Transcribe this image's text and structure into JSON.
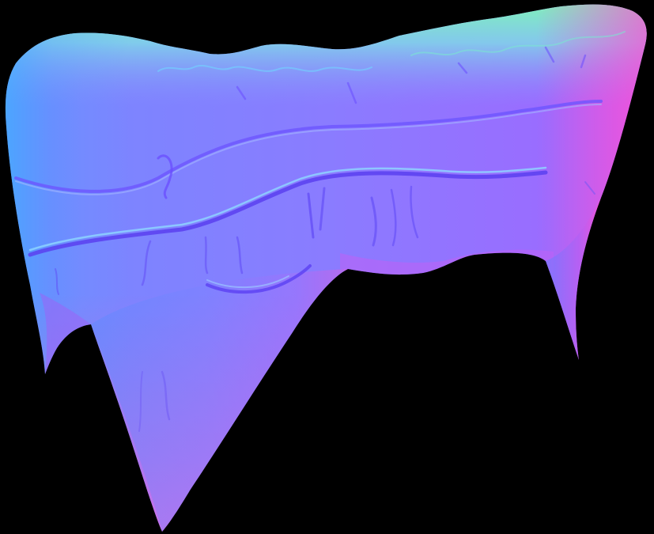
{
  "image": {
    "subject": "normal-map-texture",
    "colors": {
      "background": "#000000",
      "base": "#8080ff",
      "top_edge": "#7ff0c0",
      "left_edge": "#4fa0ff",
      "right_edge": "#e060ff",
      "bottom_edge": "#ff55cc",
      "crease": "#6a5cff",
      "highlight": "#9aa8ff"
    }
  }
}
